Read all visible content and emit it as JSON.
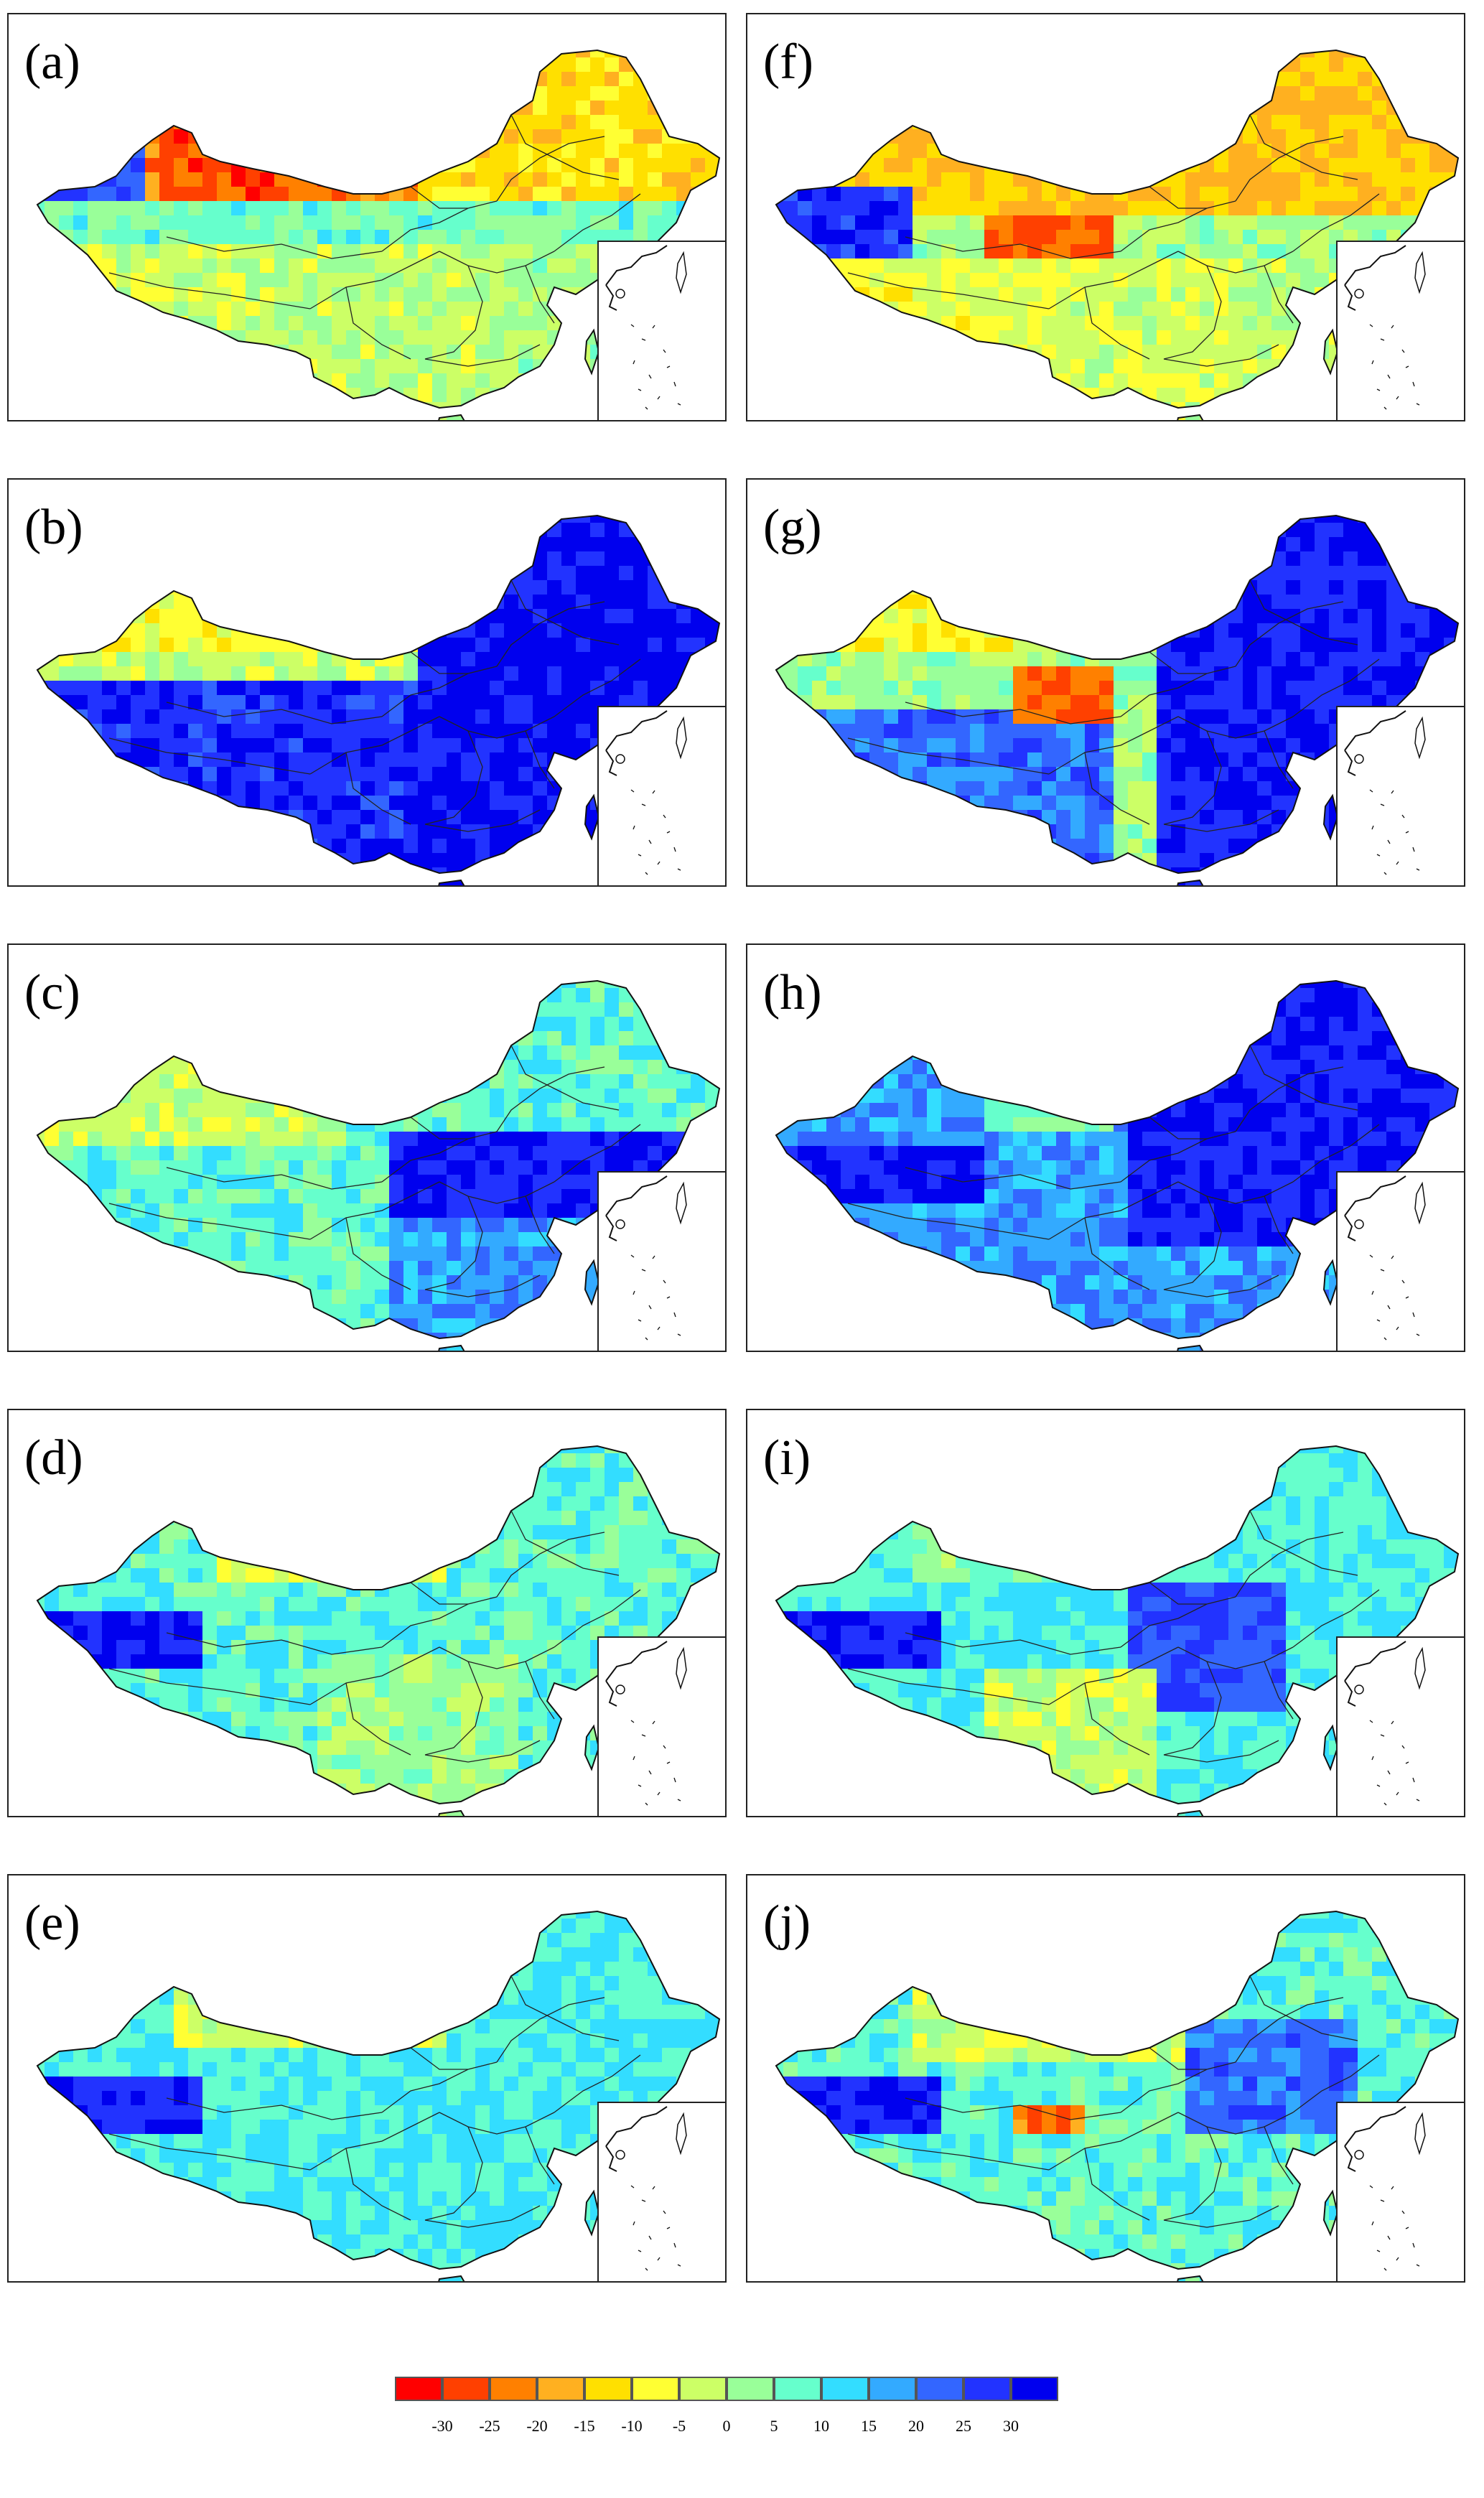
{
  "panels": [
    {
      "label": "(a)",
      "pattern": "arid-negative"
    },
    {
      "label": "(b)",
      "pattern": "strong-positive-east"
    },
    {
      "label": "(c)",
      "pattern": "moderate-positive-east"
    },
    {
      "label": "(d)",
      "pattern": "mild-positive"
    },
    {
      "label": "(e)",
      "pattern": "mild-positive-uniform"
    },
    {
      "label": "(f)",
      "pattern": "arid-negative-west"
    },
    {
      "label": "(g)",
      "pattern": "strong-positive-east-negative-center"
    },
    {
      "label": "(h)",
      "pattern": "strong-positive-widespread"
    },
    {
      "label": "(i)",
      "pattern": "mixed-positive"
    },
    {
      "label": "(j)",
      "pattern": "mixed-positive-2"
    }
  ],
  "legend": {
    "colors": [
      "#ff0000",
      "#ff4000",
      "#ff8000",
      "#ffb020",
      "#ffe000",
      "#ffff33",
      "#ccff66",
      "#99ff99",
      "#66ffcc",
      "#33ddff",
      "#33aaff",
      "#3366ff",
      "#2233ff",
      "#0000ee"
    ],
    "ticks": [
      "-30",
      "-25",
      "-20",
      "-15",
      "-10",
      "-5",
      "0",
      "5",
      "10",
      "15",
      "20",
      "25",
      "30"
    ]
  }
}
